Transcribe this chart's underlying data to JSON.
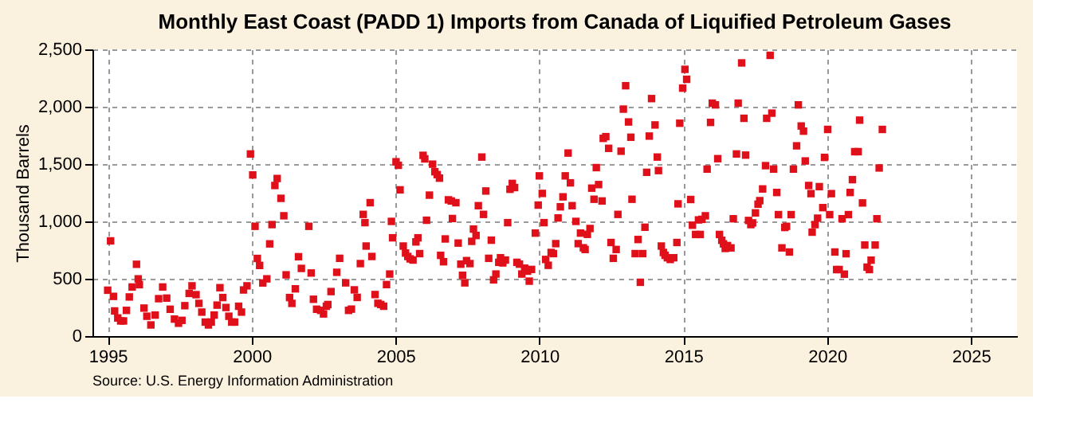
{
  "chart_data": {
    "type": "scatter",
    "title": "Monthly East Coast (PADD 1) Imports from Canada of Liquified Petroleum Gases",
    "ylabel": "Thousand Barrels",
    "annotations": [
      "Source: U.S. Energy Information Administration"
    ],
    "marker": "square",
    "grid": true,
    "xlim": [
      1994.47,
      2026.6
    ],
    "xticks": [
      1995,
      2000,
      2005,
      2010,
      2015,
      2020,
      2025
    ],
    "ylim": [
      0,
      2500
    ],
    "yticks": [
      0,
      500,
      {
        "value": 1000,
        "label": "1,000"
      },
      {
        "value": 1500,
        "label": "1,500"
      },
      {
        "value": 2000,
        "label": "2,000"
      },
      {
        "value": 2500,
        "label": "2,500"
      }
    ],
    "series": [
      {
        "color": "#e0101a",
        "x": [
          1995.0,
          1995.1,
          1995.2,
          1995.24,
          1995.35,
          1995.45,
          1995.55,
          1995.65,
          1995.75,
          1995.85,
          1996.0,
          1996.06,
          1996.1,
          1996.26,
          1996.36,
          1996.5,
          1996.65,
          1996.77,
          1996.91,
          1997.05,
          1997.17,
          1997.32,
          1997.46,
          1997.58,
          1997.68,
          1997.83,
          1997.93,
          1998.07,
          1998.17,
          1998.27,
          1998.39,
          1998.5,
          1998.6,
          1998.7,
          1998.8,
          1998.9,
          1999.0,
          1999.11,
          1999.21,
          1999.31,
          1999.41,
          1999.55,
          1999.65,
          1999.72,
          1999.84,
          1999.96,
          2000.04,
          2000.12,
          2000.2,
          2000.28,
          2000.39,
          2000.53,
          2000.63,
          2000.71,
          2000.81,
          2000.89,
          2001.02,
          2001.12,
          2001.2,
          2001.32,
          2001.4,
          2001.52,
          2001.63,
          2001.73,
          2001.99,
          2002.07,
          2002.15,
          2002.26,
          2002.4,
          2002.5,
          2002.6,
          2002.65,
          2002.76,
          2002.96,
          2003.06,
          2003.27,
          2003.37,
          2003.47,
          2003.57,
          2003.67,
          2003.78,
          2003.88,
          2003.94,
          2003.98,
          2004.12,
          2004.18,
          2004.29,
          2004.39,
          2004.49,
          2004.59,
          2004.69,
          2004.8,
          2004.86,
          2004.9,
          2005.02,
          2005.1,
          2005.16,
          2005.27,
          2005.35,
          2005.43,
          2005.51,
          2005.61,
          2005.71,
          2005.78,
          2005.84,
          2005.96,
          2006.02,
          2006.08,
          2006.18,
          2006.29,
          2006.37,
          2006.45,
          2006.53,
          2006.57,
          2006.67,
          2006.73,
          2006.84,
          2006.94,
          2006.98,
          2007.1,
          2007.18,
          2007.27,
          2007.33,
          2007.41,
          2007.47,
          2007.59,
          2007.65,
          2007.71,
          2007.8,
          2007.88,
          2008.0,
          2008.06,
          2008.14,
          2008.24,
          2008.33,
          2008.41,
          2008.49,
          2008.59,
          2008.65,
          2008.73,
          2008.82,
          2008.9,
          2008.98,
          2009.06,
          2009.14,
          2009.22,
          2009.31,
          2009.39,
          2009.49,
          2009.59,
          2009.65,
          2009.73,
          2009.86,
          2009.96,
          2010.0,
          2010.1,
          2010.16,
          2010.22,
          2010.31,
          2010.41,
          2010.49,
          2010.57,
          2010.65,
          2010.73,
          2010.82,
          2010.9,
          2011.0,
          2011.08,
          2011.14,
          2011.27,
          2011.35,
          2011.43,
          2011.53,
          2011.59,
          2011.67,
          2011.76,
          2011.82,
          2011.9,
          2011.98,
          2012.06,
          2012.18,
          2012.22,
          2012.31,
          2012.41,
          2012.49,
          2012.57,
          2012.67,
          2012.73,
          2012.84,
          2012.92,
          2013.0,
          2013.1,
          2013.18,
          2013.22,
          2013.33,
          2013.43,
          2013.51,
          2013.59,
          2013.67,
          2013.73,
          2013.82,
          2013.9,
          2014.02,
          2014.1,
          2014.14,
          2014.24,
          2014.31,
          2014.37,
          2014.45,
          2014.55,
          2014.67,
          2014.78,
          2014.82,
          2014.88,
          2014.98,
          2015.06,
          2015.12,
          2015.26,
          2015.32,
          2015.43,
          2015.53,
          2015.59,
          2015.65,
          2015.77,
          2015.83,
          2015.95,
          2016.01,
          2016.12,
          2016.2,
          2016.26,
          2016.34,
          2016.4,
          2016.46,
          2016.54,
          2016.66,
          2016.74,
          2016.85,
          2016.91,
          2017.03,
          2017.11,
          2017.17,
          2017.27,
          2017.35,
          2017.41,
          2017.51,
          2017.6,
          2017.66,
          2017.76,
          2017.86,
          2017.9,
          2018.02,
          2018.08,
          2018.14,
          2018.25,
          2018.31,
          2018.43,
          2018.53,
          2018.59,
          2018.69,
          2018.75,
          2018.83,
          2018.94,
          2019.0,
          2019.1,
          2019.18,
          2019.24,
          2019.36,
          2019.44,
          2019.48,
          2019.58,
          2019.67,
          2019.73,
          2019.85,
          2019.91,
          2020.02,
          2020.09,
          2020.15,
          2020.27,
          2020.33,
          2020.42,
          2020.52,
          2020.6,
          2020.66,
          2020.74,
          2020.8,
          2020.88,
          2020.96,
          2021.08,
          2021.13,
          2021.23,
          2021.31,
          2021.39,
          2021.47,
          2021.53,
          2021.67,
          2021.73,
          2021.81,
          2021.92
        ],
        "values": [
          400,
          830,
          346,
          219,
          158,
          132,
          132,
          224,
          341,
          428,
          626,
          499,
          448,
          244,
          173,
          97,
          183,
          326,
          428,
          331,
          234,
          148,
          112,
          137,
          265,
          372,
          438,
          361,
          285,
          209,
          122,
          97,
          122,
          183,
          270,
          422,
          336,
          249,
          173,
          122,
          122,
          260,
          209,
          402,
          438,
          1588,
          1405,
          957,
          677,
          616,
          463,
          499,
          804,
          972,
          1313,
          1374,
          1201,
          1049,
          534,
          336,
          285,
          412,
          692,
          590,
          957,
          550,
          321,
          234,
          224,
          193,
          260,
          275,
          388,
          556,
          678,
          464,
          224,
          235,
          403,
          337,
          632,
          1061,
          989,
          785,
          1163,
          694,
          362,
          286,
          275,
          260,
          449,
          541,
          1000,
          857,
          1520,
          1489,
          1275,
          785,
          724,
          694,
          673,
          663,
          821,
          857,
          719,
          1576,
          1545,
          1010,
          1229,
          1499,
          1433,
          1408,
          1377,
          704,
          648,
          847,
          1188,
          1178,
          1025,
          1163,
          811,
          627,
          530,
          464,
          658,
          632,
          826,
          933,
          877,
          1137,
          1561,
          1061,
          1265,
          678,
          836,
          490,
          541,
          643,
          683,
          638,
          663,
          989,
          1280,
          1331,
          1295,
          643,
          627,
          541,
          592,
          566,
          479,
          581,
          898,
          1142,
          1397,
          1244,
          989,
          668,
          617,
          729,
          719,
          806,
          1030,
          1127,
          1214,
          1397,
          1596,
          1336,
          1137,
          1000,
          806,
          898,
          770,
          755,
          887,
          938,
          1290,
          1193,
          1469,
          1321,
          1178,
          1724,
          1739,
          1637,
          816,
          678,
          755,
          1061,
          1612,
          1979,
          2183,
          1867,
          1734,
          1193,
          719,
          842,
          469,
          719,
          949,
          1428,
          1744,
          2071,
          1841,
          1561,
          1443,
          785,
          729,
          704,
          683,
          668,
          683,
          816,
          1153,
          1856,
          2162,
          2326,
          2239,
          1191,
          967,
          886,
          1013,
          886,
          1018,
          1049,
          1456,
          1863,
          2031,
          2016,
          1547,
          886,
          835,
          804,
          764,
          789,
          769,
          1023,
          1588,
          2031,
          2382,
          1899,
          1578,
          1008,
          972,
          987,
          1074,
          1150,
          1181,
          1283,
          1486,
          1899,
          2448,
          1944,
          1456,
          1252,
          1059,
          769,
          947,
          957,
          733,
          1059,
          1456,
          1659,
          2016,
          1832,
          1787,
          1527,
          1313,
          1242,
          906,
          972,
          1028,
          1303,
          1120,
          1558,
          1802,
          1059,
          1242,
          733,
          580,
          580,
          1023,
          540,
          718,
          1059,
          1252,
          1364,
          1608,
          1608,
          1883,
          1161,
          794,
          601,
          580,
          662,
          794,
          1023,
          1466,
          1802
        ]
      }
    ]
  }
}
